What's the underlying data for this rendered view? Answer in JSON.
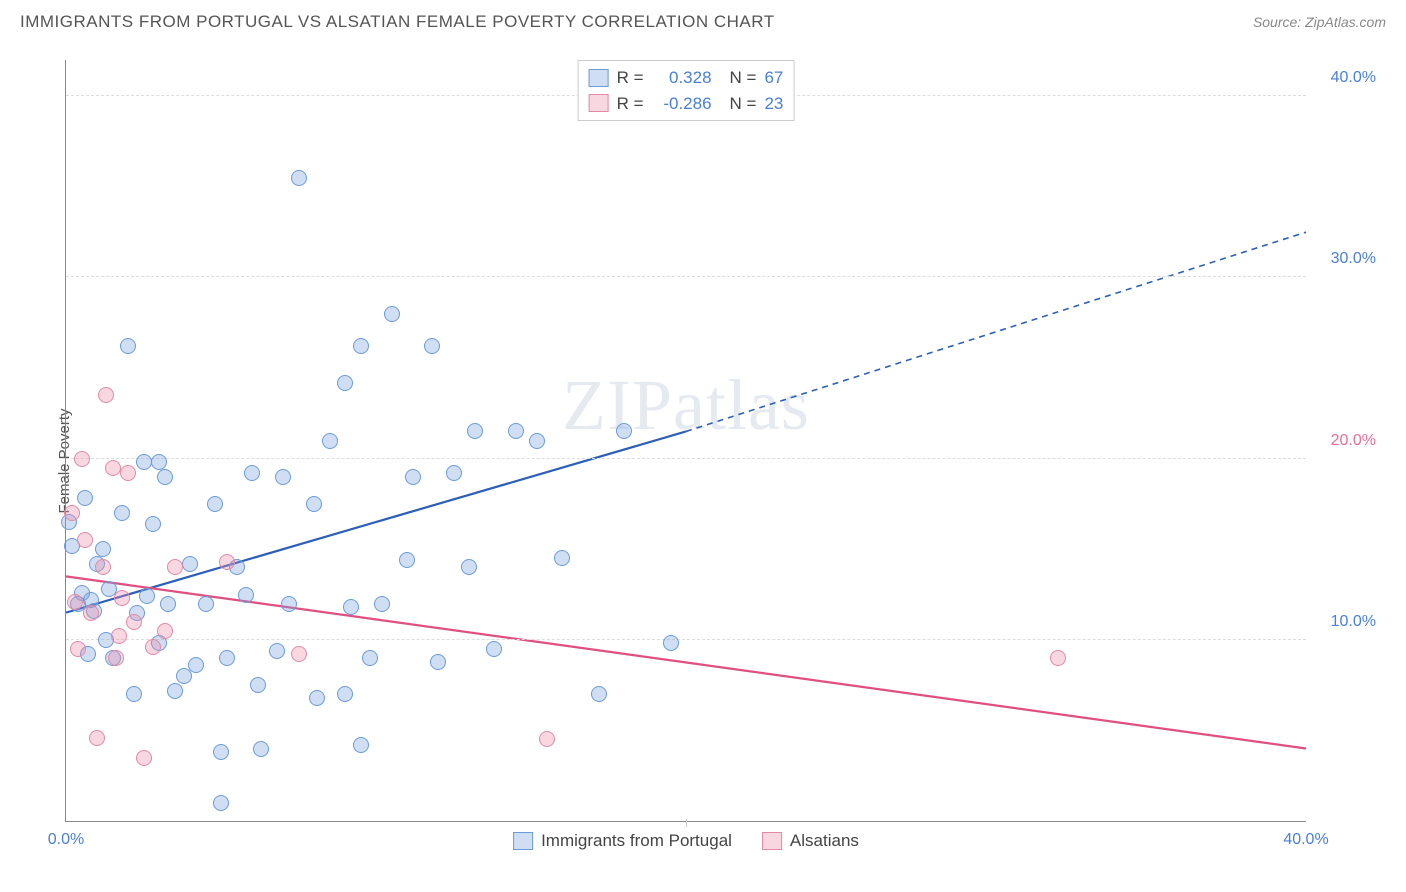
{
  "title": "IMMIGRANTS FROM PORTUGAL VS ALSATIAN FEMALE POVERTY CORRELATION CHART",
  "source_prefix": "Source: ",
  "source": "ZipAtlas.com",
  "ylabel": "Female Poverty",
  "watermark": "ZIPatlas",
  "chart": {
    "type": "scatter",
    "xlim": [
      0,
      40
    ],
    "ylim": [
      0,
      42
    ],
    "x_ticks": [
      {
        "v": 0,
        "label": "0.0%",
        "color": "#4a7fd8"
      },
      {
        "v": 20,
        "label": ""
      },
      {
        "v": 40,
        "label": "40.0%",
        "color": "#4a7fd8"
      }
    ],
    "y_ticks": [
      {
        "v": 10,
        "label": "10.0%",
        "color": "#4a7fd8"
      },
      {
        "v": 20,
        "label": "20.0%",
        "color": "#e86f97"
      },
      {
        "v": 30,
        "label": "30.0%",
        "color": "#4a7fd8"
      },
      {
        "v": 40,
        "label": "40.0%",
        "color": "#4a7fd8"
      }
    ],
    "grid_color": "#dddddd",
    "background": "#ffffff",
    "marker_radius": 8,
    "series": [
      {
        "name": "Immigrants from Portugal",
        "fill": "rgba(120,160,220,0.35)",
        "stroke": "#6b9bd8",
        "trend_color": "#2d5fb8",
        "R": "0.328",
        "N": "67",
        "trend": {
          "x1": 0,
          "y1": 11.5,
          "x2_solid": 20,
          "y2_solid": 21.5,
          "x2": 40,
          "y2": 32.5
        },
        "points": [
          [
            0.1,
            16.5
          ],
          [
            0.2,
            15.2
          ],
          [
            0.4,
            12.0
          ],
          [
            0.5,
            12.6
          ],
          [
            0.6,
            17.8
          ],
          [
            0.7,
            9.2
          ],
          [
            0.8,
            12.2
          ],
          [
            0.9,
            11.6
          ],
          [
            1.0,
            14.2
          ],
          [
            1.2,
            15.0
          ],
          [
            1.3,
            10.0
          ],
          [
            1.4,
            12.8
          ],
          [
            1.5,
            9.0
          ],
          [
            1.8,
            17.0
          ],
          [
            2.0,
            26.2
          ],
          [
            2.2,
            7.0
          ],
          [
            2.3,
            11.5
          ],
          [
            2.5,
            19.8
          ],
          [
            2.6,
            12.4
          ],
          [
            2.8,
            16.4
          ],
          [
            3.0,
            9.8
          ],
          [
            3.0,
            19.8
          ],
          [
            3.2,
            19.0
          ],
          [
            3.3,
            12.0
          ],
          [
            3.5,
            7.2
          ],
          [
            3.8,
            8.0
          ],
          [
            4.0,
            14.2
          ],
          [
            4.2,
            8.6
          ],
          [
            4.5,
            12.0
          ],
          [
            4.8,
            17.5
          ],
          [
            5.0,
            3.8
          ],
          [
            5.2,
            9.0
          ],
          [
            5.5,
            14.0
          ],
          [
            5.8,
            12.5
          ],
          [
            6.0,
            19.2
          ],
          [
            6.2,
            7.5
          ],
          [
            6.3,
            4.0
          ],
          [
            6.8,
            9.4
          ],
          [
            7.0,
            19.0
          ],
          [
            7.2,
            12.0
          ],
          [
            7.5,
            35.5
          ],
          [
            8.0,
            17.5
          ],
          [
            8.1,
            6.8
          ],
          [
            8.5,
            21.0
          ],
          [
            9.0,
            7.0
          ],
          [
            9.0,
            24.2
          ],
          [
            9.2,
            11.8
          ],
          [
            9.5,
            4.2
          ],
          [
            9.5,
            26.2
          ],
          [
            9.8,
            9.0
          ],
          [
            10.2,
            12.0
          ],
          [
            10.5,
            28.0
          ],
          [
            11.0,
            14.4
          ],
          [
            11.2,
            19.0
          ],
          [
            11.8,
            26.2
          ],
          [
            12.0,
            8.8
          ],
          [
            12.5,
            19.2
          ],
          [
            13.0,
            14.0
          ],
          [
            13.2,
            21.5
          ],
          [
            13.8,
            9.5
          ],
          [
            14.5,
            21.5
          ],
          [
            15.2,
            21.0
          ],
          [
            16.0,
            14.5
          ],
          [
            17.2,
            7.0
          ],
          [
            18.0,
            21.5
          ],
          [
            19.5,
            9.8
          ],
          [
            5.0,
            1.0
          ]
        ]
      },
      {
        "name": "Alsatians",
        "fill": "rgba(235,140,170,0.35)",
        "stroke": "#e08aa8",
        "trend_color": "#e04f7f",
        "R": "-0.286",
        "N": "23",
        "trend": {
          "x1": 0,
          "y1": 13.5,
          "x2_solid": 40,
          "y2_solid": 4.0,
          "x2": 40,
          "y2": 4.0
        },
        "points": [
          [
            0.2,
            17.0
          ],
          [
            0.3,
            12.1
          ],
          [
            0.4,
            9.5
          ],
          [
            0.5,
            20.0
          ],
          [
            0.6,
            15.5
          ],
          [
            0.8,
            11.5
          ],
          [
            1.0,
            4.6
          ],
          [
            1.2,
            14.0
          ],
          [
            1.3,
            23.5
          ],
          [
            1.5,
            19.5
          ],
          [
            1.6,
            9.0
          ],
          [
            1.7,
            10.2
          ],
          [
            1.8,
            12.3
          ],
          [
            2.0,
            19.2
          ],
          [
            2.2,
            11.0
          ],
          [
            2.5,
            3.5
          ],
          [
            2.8,
            9.6
          ],
          [
            3.2,
            10.5
          ],
          [
            3.5,
            14.0
          ],
          [
            5.2,
            14.3
          ],
          [
            7.5,
            9.2
          ],
          [
            15.5,
            4.5
          ],
          [
            32.0,
            9.0
          ]
        ]
      }
    ],
    "legend_top": {
      "r_label": "R =",
      "n_label": "N =",
      "value_color": "#4a7fd8"
    }
  }
}
